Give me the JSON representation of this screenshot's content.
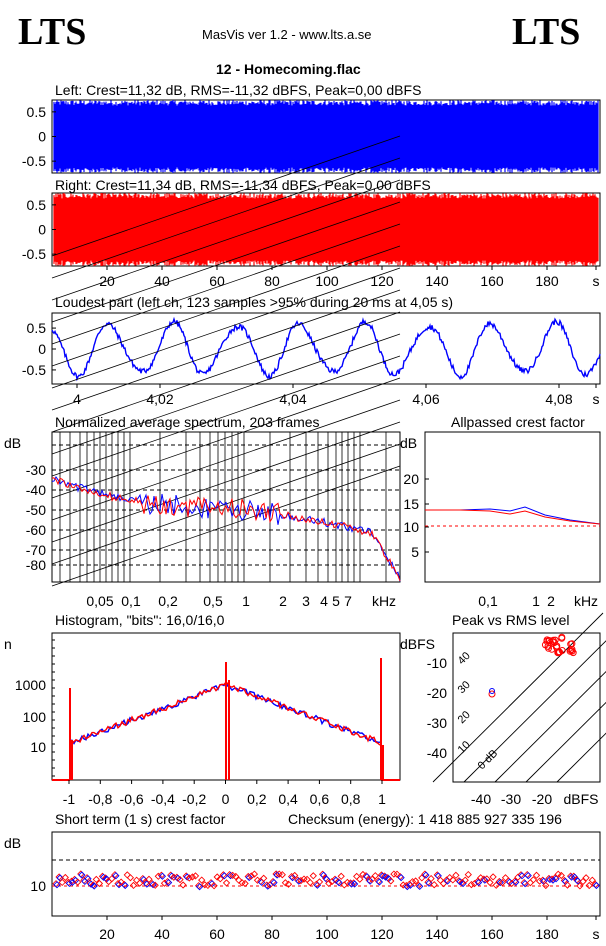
{
  "header": {
    "logo_left": "LTS",
    "logo_right": "LTS",
    "app_title": "MasVis ver 1.2 - www.lts.a.se",
    "track": "12 - Homecoming.flac"
  },
  "waveform_left": {
    "caption": "Left: Crest=11,32 dB, RMS=-11,32 dBFS, Peak=0,00 dBFS",
    "yticks": [
      "0.5",
      "0",
      "-0.5"
    ],
    "color": "#0000ff"
  },
  "waveform_right": {
    "caption": "Right: Crest=11,34 dB, RMS=-11,34 dBFS, Peak=0,00 dBFS",
    "yticks": [
      "0.5",
      "0",
      "-0.5"
    ],
    "color": "#ff0000",
    "xticks": [
      "20",
      "40",
      "60",
      "80",
      "100",
      "120",
      "140",
      "160",
      "180",
      "s"
    ]
  },
  "loudest": {
    "caption": "Loudest part (left  ch, 123 samples >95% during 20 ms at 4,05 s)",
    "yticks": [
      "0.5",
      "0",
      "-0.5"
    ],
    "xticks": [
      "4",
      "4,02",
      "4,04",
      "4,06",
      "4,08",
      "s"
    ]
  },
  "spectrum": {
    "caption": "Normalized average spectrum, 203 frames",
    "ylabel": "dB",
    "yticks": [
      "-30",
      "-40",
      "-50",
      "-60",
      "-70",
      "-80"
    ],
    "xticks": [
      "0,05",
      "0,1",
      "0,2",
      "0,5",
      "1",
      "2",
      "3",
      "4",
      "5",
      "7",
      "kHz"
    ]
  },
  "allpassed": {
    "caption": "Allpassed crest factor",
    "ylabel": "dB",
    "yticks": [
      "20",
      "15",
      "10",
      "5"
    ],
    "xticks": [
      "0,1",
      "1",
      "2",
      "kHz"
    ]
  },
  "histogram": {
    "caption": "Histogram, \"bits\": 16,0/16,0",
    "ylabel": "n",
    "yticks": [
      "1000",
      "100",
      "10"
    ],
    "xticks": [
      "-1",
      "-0,8",
      "-0,6",
      "-0,4",
      "-0,2",
      "0",
      "0,2",
      "0,4",
      "0,6",
      "0,8",
      "1"
    ]
  },
  "peak_rms": {
    "caption": "Peak vs RMS level",
    "ylabel": "dBFS",
    "yticks": [
      "-10",
      "-20",
      "-30",
      "-40"
    ],
    "xticks": [
      "-40",
      "-30",
      "-20",
      "dBFS"
    ],
    "diag_labels": [
      "40",
      "30",
      "20",
      "10",
      "0 dB"
    ]
  },
  "short_term": {
    "caption": "Short term (1 s) crest factor",
    "checksum": "Checksum (energy):  1 418 885 927 335 196",
    "ylabel": "dB",
    "yticks": [
      "10"
    ],
    "xticks": [
      "20",
      "40",
      "60",
      "80",
      "100",
      "120",
      "140",
      "160",
      "180",
      "s"
    ]
  }
}
